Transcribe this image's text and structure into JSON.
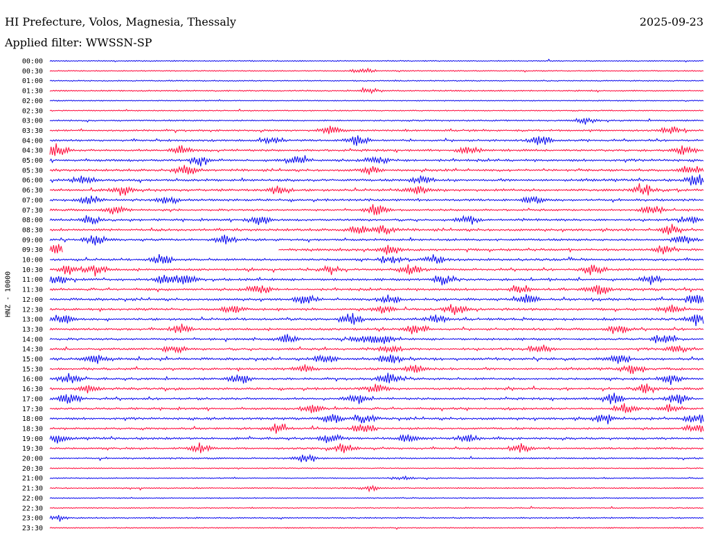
{
  "header": {
    "station": "HI Prefecture, Volos, Magnesia, Thessaly",
    "date": "2025-09-23",
    "filter": "Applied filter: WWSSN-SP"
  },
  "channel_label": "HNZ - 10000",
  "colors": {
    "even": "#0000ee",
    "odd": "#ff0033",
    "text": "#000000"
  },
  "chart_data": {
    "type": "line",
    "title": "HI Prefecture, Volos, Magnesia, Thessaly",
    "subtitle": "Applied filter: WWSSN-SP",
    "ylabel": "HNZ - 10000",
    "xlabel": "",
    "grid": false,
    "series": [
      {
        "name": "00:00",
        "color": "#0000ee",
        "activity": 0.1,
        "bursts": []
      },
      {
        "name": "00:30",
        "color": "#ff0033",
        "activity": 0.1,
        "bursts": [
          [
            0.48,
            0.7
          ]
        ]
      },
      {
        "name": "01:00",
        "color": "#0000ee",
        "activity": 0.12,
        "bursts": []
      },
      {
        "name": "01:30",
        "color": "#ff0033",
        "activity": 0.2,
        "bursts": [
          [
            0.49,
            0.6
          ]
        ]
      },
      {
        "name": "02:00",
        "color": "#0000ee",
        "activity": 0.1,
        "bursts": []
      },
      {
        "name": "02:30",
        "color": "#ff0033",
        "activity": 0.12,
        "bursts": []
      },
      {
        "name": "03:00",
        "color": "#0000ee",
        "activity": 0.25,
        "bursts": [
          [
            0.82,
            0.8
          ]
        ]
      },
      {
        "name": "03:30",
        "color": "#ff0033",
        "activity": 0.4,
        "bursts": [
          [
            0.43,
            1.2
          ],
          [
            0.95,
            1.0
          ]
        ]
      },
      {
        "name": "04:00",
        "color": "#0000ee",
        "activity": 0.45,
        "bursts": [
          [
            0.34,
            1.0
          ],
          [
            0.47,
            1.4
          ],
          [
            0.75,
            1.0
          ]
        ]
      },
      {
        "name": "04:30",
        "color": "#ff0033",
        "activity": 0.55,
        "bursts": [
          [
            0.01,
            1.4
          ],
          [
            0.2,
            1.0
          ],
          [
            0.64,
            1.0
          ],
          [
            0.97,
            1.1
          ]
        ]
      },
      {
        "name": "05:00",
        "color": "#0000ee",
        "activity": 0.65,
        "bursts": [
          [
            0.23,
            1.3
          ],
          [
            0.38,
            1.1
          ],
          [
            0.5,
            1.0
          ]
        ]
      },
      {
        "name": "05:30",
        "color": "#ff0033",
        "activity": 0.55,
        "bursts": [
          [
            0.21,
            1.3
          ],
          [
            0.49,
            1.0
          ],
          [
            0.98,
            1.2
          ]
        ]
      },
      {
        "name": "06:00",
        "color": "#0000ee",
        "activity": 0.6,
        "bursts": [
          [
            0.05,
            1.2
          ],
          [
            0.57,
            1.0
          ],
          [
            0.99,
            1.5
          ]
        ]
      },
      {
        "name": "06:30",
        "color": "#ff0033",
        "activity": 0.65,
        "bursts": [
          [
            0.11,
            1.2
          ],
          [
            0.35,
            1.1
          ],
          [
            0.56,
            1.3
          ],
          [
            0.91,
            1.4
          ]
        ]
      },
      {
        "name": "07:00",
        "color": "#0000ee",
        "activity": 0.55,
        "bursts": [
          [
            0.06,
            1.1
          ],
          [
            0.18,
            1.0
          ],
          [
            0.74,
            1.0
          ]
        ]
      },
      {
        "name": "07:30",
        "color": "#ff0033",
        "activity": 0.45,
        "bursts": [
          [
            0.1,
            1.2
          ],
          [
            0.5,
            1.5
          ],
          [
            0.92,
            1.2
          ]
        ]
      },
      {
        "name": "08:00",
        "color": "#0000ee",
        "activity": 0.55,
        "bursts": [
          [
            0.06,
            1.2
          ],
          [
            0.32,
            1.3
          ],
          [
            0.64,
            1.2
          ],
          [
            0.98,
            1.3
          ]
        ]
      },
      {
        "name": "08:30",
        "color": "#ff0033",
        "activity": 0.6,
        "bursts": [
          [
            0.47,
            1.1
          ],
          [
            0.51,
            1.2
          ],
          [
            0.95,
            1.3
          ]
        ]
      },
      {
        "name": "09:00",
        "color": "#0000ee",
        "activity": 0.55,
        "bursts": [
          [
            0.07,
            1.4
          ],
          [
            0.27,
            1.1
          ],
          [
            0.97,
            1.5
          ]
        ]
      },
      {
        "name": "09:30",
        "color": "#ff0033",
        "activity": 0.55,
        "gap": [
          0.02,
          0.35
        ],
        "bursts": [
          [
            0.01,
            1.5
          ],
          [
            0.52,
            1.2
          ],
          [
            0.94,
            1.2
          ]
        ]
      },
      {
        "name": "10:00",
        "color": "#0000ee",
        "activity": 0.55,
        "bursts": [
          [
            0.17,
            1.3
          ],
          [
            0.52,
            1.1
          ],
          [
            0.59,
            1.1
          ]
        ]
      },
      {
        "name": "10:30",
        "color": "#ff0033",
        "activity": 0.55,
        "bursts": [
          [
            0.03,
            1.2
          ],
          [
            0.07,
            1.3
          ],
          [
            0.43,
            1.1
          ],
          [
            0.55,
            1.2
          ],
          [
            0.83,
            1.2
          ]
        ]
      },
      {
        "name": "11:00",
        "color": "#0000ee",
        "activity": 0.6,
        "bursts": [
          [
            0.01,
            1.3
          ],
          [
            0.18,
            1.4
          ],
          [
            0.21,
            1.2
          ],
          [
            0.6,
            1.3
          ],
          [
            0.92,
            1.2
          ]
        ]
      },
      {
        "name": "11:30",
        "color": "#ff0033",
        "activity": 0.65,
        "bursts": [
          [
            0.32,
            1.3
          ],
          [
            0.72,
            1.2
          ],
          [
            0.84,
            1.4
          ]
        ]
      },
      {
        "name": "12:00",
        "color": "#0000ee",
        "activity": 0.6,
        "bursts": [
          [
            0.39,
            1.1
          ],
          [
            0.52,
            1.2
          ],
          [
            0.73,
            1.4
          ],
          [
            0.99,
            1.3
          ]
        ]
      },
      {
        "name": "12:30",
        "color": "#ff0033",
        "activity": 0.6,
        "bursts": [
          [
            0.28,
            1.1
          ],
          [
            0.51,
            1.2
          ],
          [
            0.62,
            1.4
          ],
          [
            0.95,
            1.2
          ]
        ]
      },
      {
        "name": "13:00",
        "color": "#0000ee",
        "activity": 0.6,
        "bursts": [
          [
            0.02,
            1.3
          ],
          [
            0.46,
            1.5
          ],
          [
            0.59,
            1.0
          ],
          [
            0.99,
            1.6
          ]
        ]
      },
      {
        "name": "13:30",
        "color": "#ff0033",
        "activity": 0.55,
        "bursts": [
          [
            0.2,
            1.0
          ],
          [
            0.56,
            1.3
          ],
          [
            0.87,
            1.1
          ]
        ]
      },
      {
        "name": "14:00",
        "color": "#0000ee",
        "activity": 0.55,
        "bursts": [
          [
            0.36,
            1.2
          ],
          [
            0.48,
            1.3
          ],
          [
            0.51,
            1.2
          ],
          [
            0.94,
            1.4
          ]
        ]
      },
      {
        "name": "14:30",
        "color": "#ff0033",
        "activity": 0.55,
        "bursts": [
          [
            0.19,
            1.0
          ],
          [
            0.52,
            1.0
          ],
          [
            0.75,
            1.2
          ],
          [
            0.96,
            1.1
          ]
        ]
      },
      {
        "name": "15:00",
        "color": "#0000ee",
        "activity": 0.6,
        "bursts": [
          [
            0.07,
            1.3
          ],
          [
            0.42,
            1.2
          ],
          [
            0.52,
            1.3
          ],
          [
            0.87,
            1.2
          ]
        ]
      },
      {
        "name": "15:30",
        "color": "#ff0033",
        "activity": 0.55,
        "bursts": [
          [
            0.39,
            1.1
          ],
          [
            0.56,
            1.2
          ],
          [
            0.89,
            1.3
          ]
        ]
      },
      {
        "name": "16:00",
        "color": "#0000ee",
        "activity": 0.55,
        "bursts": [
          [
            0.03,
            1.2
          ],
          [
            0.29,
            1.4
          ],
          [
            0.52,
            1.6
          ],
          [
            0.95,
            1.3
          ]
        ]
      },
      {
        "name": "16:30",
        "color": "#ff0033",
        "activity": 0.55,
        "bursts": [
          [
            0.06,
            1.1
          ],
          [
            0.5,
            1.2
          ],
          [
            0.91,
            1.3
          ]
        ]
      },
      {
        "name": "17:00",
        "color": "#0000ee",
        "activity": 0.55,
        "bursts": [
          [
            0.03,
            1.4
          ],
          [
            0.47,
            1.2
          ],
          [
            0.86,
            1.3
          ],
          [
            0.96,
            1.3
          ]
        ]
      },
      {
        "name": "17:30",
        "color": "#ff0033",
        "activity": 0.55,
        "bursts": [
          [
            0.4,
            1.2
          ],
          [
            0.88,
            1.3
          ],
          [
            0.95,
            1.1
          ]
        ]
      },
      {
        "name": "18:00",
        "color": "#0000ee",
        "activity": 0.6,
        "bursts": [
          [
            0.43,
            1.3
          ],
          [
            0.48,
            1.1
          ],
          [
            0.85,
            1.3
          ],
          [
            0.99,
            1.4
          ]
        ]
      },
      {
        "name": "18:30",
        "color": "#ff0033",
        "activity": 0.5,
        "bursts": [
          [
            0.35,
            1.2
          ],
          [
            0.48,
            1.3
          ],
          [
            0.99,
            1.4
          ]
        ]
      },
      {
        "name": "19:00",
        "color": "#0000ee",
        "activity": 0.55,
        "bursts": [
          [
            0.01,
            1.1
          ],
          [
            0.43,
            1.4
          ],
          [
            0.55,
            1.3
          ],
          [
            0.64,
            1.1
          ]
        ]
      },
      {
        "name": "19:30",
        "color": "#ff0033",
        "activity": 0.4,
        "bursts": [
          [
            0.23,
            1.3
          ],
          [
            0.45,
            1.2
          ],
          [
            0.72,
            1.1
          ]
        ]
      },
      {
        "name": "20:00",
        "color": "#0000ee",
        "activity": 0.3,
        "bursts": [
          [
            0.39,
            1.3
          ]
        ]
      },
      {
        "name": "20:30",
        "color": "#ff0033",
        "activity": 0.1,
        "bursts": []
      },
      {
        "name": "21:00",
        "color": "#0000ee",
        "activity": 0.12,
        "bursts": [
          [
            0.54,
            0.5
          ]
        ]
      },
      {
        "name": "21:30",
        "color": "#ff0033",
        "activity": 0.15,
        "bursts": [
          [
            0.49,
            0.6
          ]
        ]
      },
      {
        "name": "22:00",
        "color": "#0000ee",
        "activity": 0.1,
        "bursts": []
      },
      {
        "name": "22:30",
        "color": "#ff0033",
        "activity": 0.12,
        "bursts": []
      },
      {
        "name": "23:00",
        "color": "#0000ee",
        "activity": 0.2,
        "bursts": [
          [
            0.01,
            0.6
          ]
        ]
      },
      {
        "name": "23:30",
        "color": "#ff0033",
        "activity": 0.12,
        "bursts": []
      }
    ]
  }
}
